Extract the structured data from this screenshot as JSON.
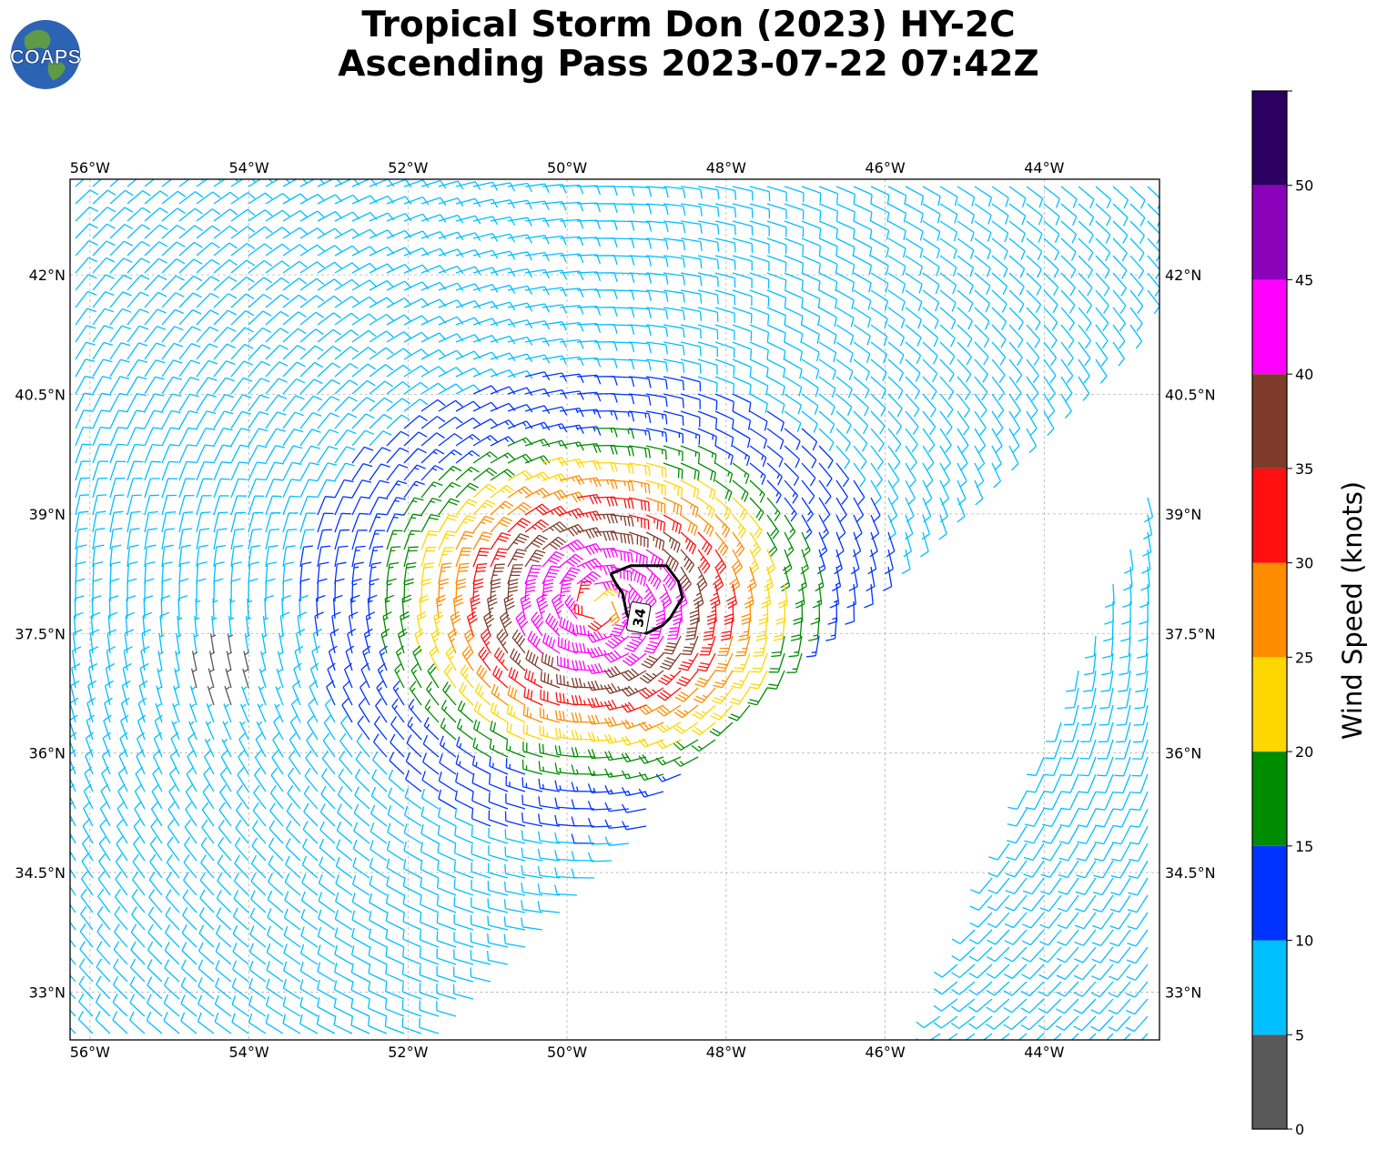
{
  "title": {
    "line1": "Tropical Storm Don (2023) HY-2C",
    "line2": "Ascending Pass 2023-07-22 07:42Z"
  },
  "logo": {
    "text": "COAPS",
    "icon": "globe-logo-icon"
  },
  "map": {
    "lon_range": [
      -56.25,
      -42.55
    ],
    "lat_range": [
      32.4,
      43.2
    ],
    "lon_ticks": [
      {
        "value": -56,
        "label": "56°W"
      },
      {
        "value": -54,
        "label": "54°W"
      },
      {
        "value": -52,
        "label": "52°W"
      },
      {
        "value": -50,
        "label": "50°W"
      },
      {
        "value": -48,
        "label": "48°W"
      },
      {
        "value": -46,
        "label": "46°W"
      },
      {
        "value": -44,
        "label": "44°W"
      }
    ],
    "lat_ticks": [
      {
        "value": 42,
        "label": "42°N"
      },
      {
        "value": 40.5,
        "label": "40.5°N"
      },
      {
        "value": 39,
        "label": "39°N"
      },
      {
        "value": 37.5,
        "label": "37.5°N"
      },
      {
        "value": 36,
        "label": "36°N"
      },
      {
        "value": 34.5,
        "label": "34.5°N"
      },
      {
        "value": 33,
        "label": "33°N"
      }
    ],
    "gridlines": true,
    "storm_center": {
      "lon": -49.6,
      "lat": 37.85
    },
    "contour": {
      "label": "34",
      "points": [
        [
          -49.45,
          38.25
        ],
        [
          -49.2,
          38.35
        ],
        [
          -48.75,
          38.35
        ],
        [
          -48.6,
          38.15
        ],
        [
          -48.55,
          37.95
        ],
        [
          -48.7,
          37.7
        ],
        [
          -48.8,
          37.6
        ],
        [
          -49.0,
          37.5
        ],
        [
          -49.15,
          37.55
        ],
        [
          -49.25,
          37.75
        ],
        [
          -49.3,
          38.0
        ],
        [
          -49.4,
          38.15
        ],
        [
          -49.45,
          38.25
        ]
      ],
      "label_at": {
        "lon": -49.1,
        "lat": 37.7
      }
    },
    "swath_edge": [
      [
        -51.6,
        32.4
      ],
      [
        -42.55,
        41.75
      ]
    ],
    "second_swath_edge": [
      [
        -45.5,
        32.4
      ],
      [
        -42.55,
        39.6
      ]
    ]
  },
  "colorbar": {
    "label": "Wind Speed (knots)",
    "ticks": [
      "0",
      "5",
      "10",
      "15",
      "20",
      "25",
      "30",
      "35",
      "40",
      "45",
      "50"
    ],
    "bins": [
      {
        "min": 0,
        "max": 5,
        "color": "#595959"
      },
      {
        "min": 5,
        "max": 10,
        "color": "#00bfff"
      },
      {
        "min": 10,
        "max": 15,
        "color": "#0033ff"
      },
      {
        "min": 15,
        "max": 20,
        "color": "#008c00"
      },
      {
        "min": 20,
        "max": 25,
        "color": "#ffd700"
      },
      {
        "min": 25,
        "max": 30,
        "color": "#ff8c00"
      },
      {
        "min": 30,
        "max": 35,
        "color": "#ff0f0f"
      },
      {
        "min": 35,
        "max": 40,
        "color": "#7f3b2a"
      },
      {
        "min": 40,
        "max": 45,
        "color": "#ff00ff"
      },
      {
        "min": 45,
        "max": 50,
        "color": "#8b00b9"
      },
      {
        "min": 50,
        "max": 55,
        "color": "#2b0060"
      }
    ]
  }
}
